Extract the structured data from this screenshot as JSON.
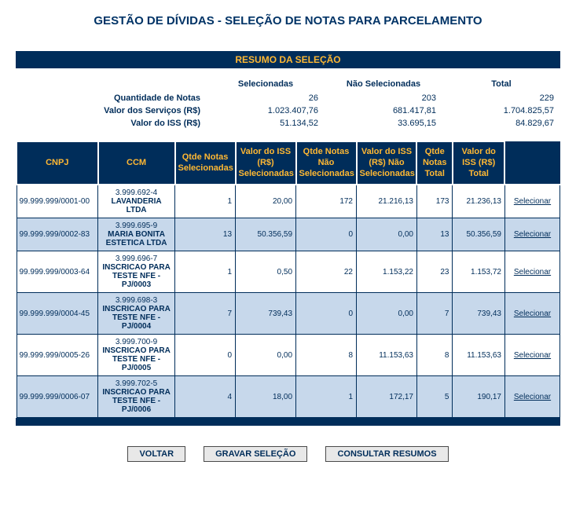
{
  "page_title": "GESTÃO DE DÍVIDAS - SELEÇÃO DE NOTAS PARA PARCELAMENTO",
  "resumo_title": "RESUMO DA SELEÇÃO",
  "summary": {
    "headers": {
      "sel": "Selecionadas",
      "nsel": "Não Selecionadas",
      "total": "Total"
    },
    "rows": [
      {
        "label": "Quantidade de Notas",
        "sel": "26",
        "nsel": "203",
        "total": "229"
      },
      {
        "label": "Valor dos Serviços (R$)",
        "sel": "1.023.407,76",
        "nsel": "681.417,81",
        "total": "1.704.825,57"
      },
      {
        "label": "Valor do ISS (R$)",
        "sel": "51.134,52",
        "nsel": "33.695,15",
        "total": "84.829,67"
      }
    ]
  },
  "columns": {
    "cnpj": "CNPJ",
    "ccm": "CCM",
    "qtde_sel": "Qtde Notas Selecionadas",
    "iss_sel": "Valor do ISS (R$) Selecionadas",
    "qtde_nsel": "Qtde Notas Não Selecionadas",
    "iss_nsel": "Valor do ISS (R$) Não Selecionadas",
    "qtde_total": "Qtde Notas Total",
    "iss_total": "Valor do ISS (R$) Total"
  },
  "action_label": "Selecionar",
  "rows": [
    {
      "cnpj": "99.999.999/0001-00",
      "ccm_id": "3.999.692-4",
      "ccm_name": "LAVANDERIA LTDA",
      "qtde_sel": "1",
      "iss_sel": "20,00",
      "qtde_nsel": "172",
      "iss_nsel": "21.216,13",
      "qtde_total": "173",
      "iss_total": "21.236,13"
    },
    {
      "cnpj": "99.999.999/0002-83",
      "ccm_id": "3.999.695-9",
      "ccm_name": "MARIA BONITA ESTETICA LTDA",
      "qtde_sel": "13",
      "iss_sel": "50.356,59",
      "qtde_nsel": "0",
      "iss_nsel": "0,00",
      "qtde_total": "13",
      "iss_total": "50.356,59"
    },
    {
      "cnpj": "99.999.999/0003-64",
      "ccm_id": "3.999.696-7",
      "ccm_name": "INSCRICAO PARA TESTE NFE - PJ/0003",
      "qtde_sel": "1",
      "iss_sel": "0,50",
      "qtde_nsel": "22",
      "iss_nsel": "1.153,22",
      "qtde_total": "23",
      "iss_total": "1.153,72"
    },
    {
      "cnpj": "99.999.999/0004-45",
      "ccm_id": "3.999.698-3",
      "ccm_name": "INSCRICAO PARA TESTE NFE - PJ/0004",
      "qtde_sel": "7",
      "iss_sel": "739,43",
      "qtde_nsel": "0",
      "iss_nsel": "0,00",
      "qtde_total": "7",
      "iss_total": "739,43"
    },
    {
      "cnpj": "99.999.999/0005-26",
      "ccm_id": "3.999.700-9",
      "ccm_name": "INSCRICAO PARA TESTE NFE - PJ/0005",
      "qtde_sel": "0",
      "iss_sel": "0,00",
      "qtde_nsel": "8",
      "iss_nsel": "11.153,63",
      "qtde_total": "8",
      "iss_total": "11.153,63"
    },
    {
      "cnpj": "99.999.999/0006-07",
      "ccm_id": "3.999.702-5",
      "ccm_name": "INSCRICAO PARA TESTE NFE - PJ/0006",
      "qtde_sel": "4",
      "iss_sel": "18,00",
      "qtde_nsel": "1",
      "iss_nsel": "172,17",
      "qtde_total": "5",
      "iss_total": "190,17"
    }
  ],
  "buttons": {
    "voltar": "VOLTAR",
    "gravar": "GRAVAR SELEÇÃO",
    "consultar": "CONSULTAR RESUMOS"
  },
  "style": {
    "header_bg": "#002d5a",
    "header_fg": "#ffb833",
    "row_alt_bg": "#c7d8eb"
  },
  "col_widths": {
    "cnpj": "14.8%",
    "ccm": "14%",
    "qtde_sel": "11%",
    "iss_sel": "11%",
    "qtde_nsel": "11%",
    "iss_nsel": "11%",
    "qtde_total": "6.5%",
    "iss_total": "9.5%",
    "action": "10%"
  }
}
